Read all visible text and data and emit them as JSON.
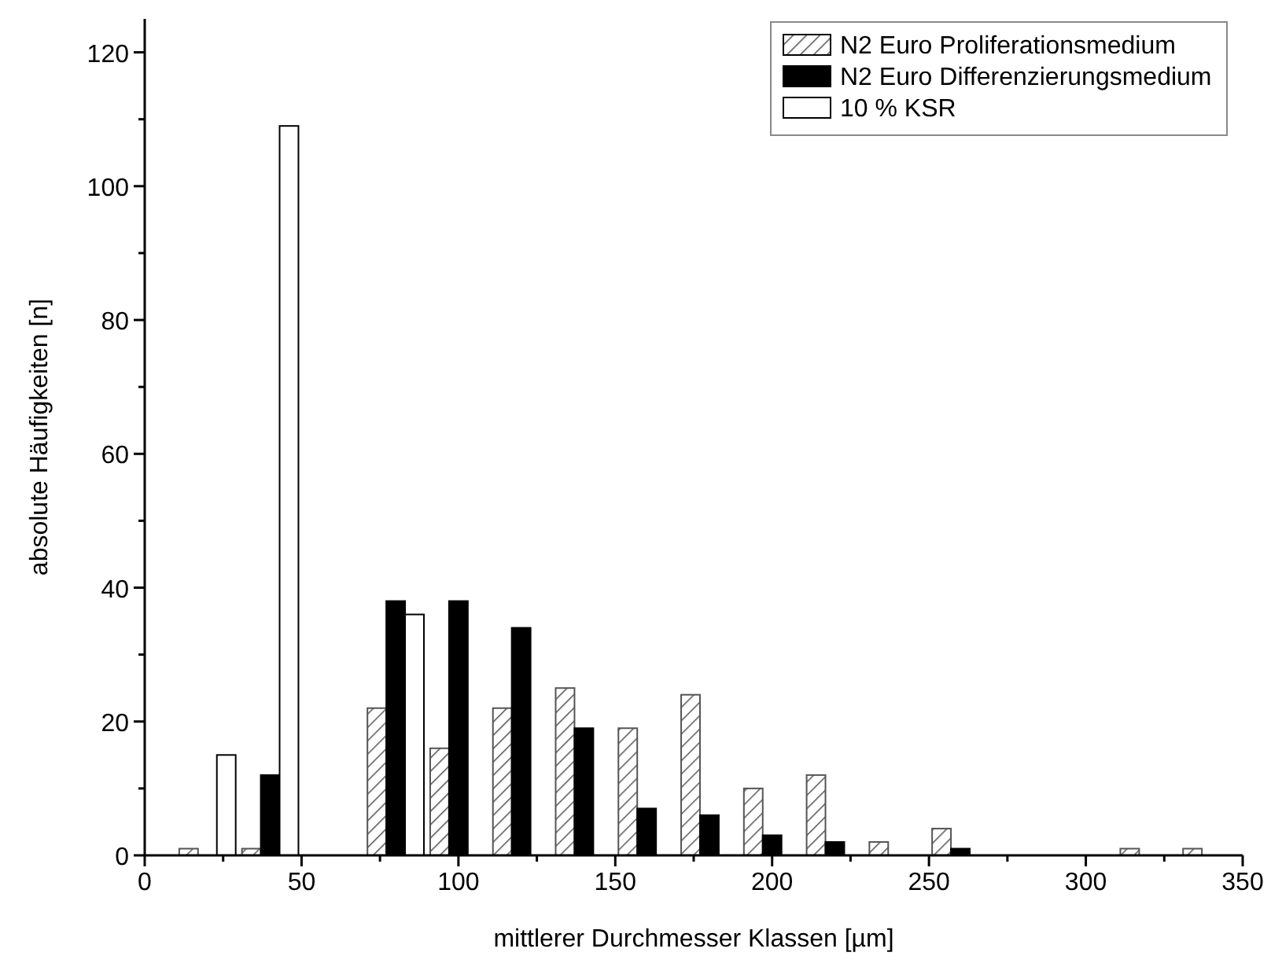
{
  "chart_data": {
    "type": "bar",
    "xlabel": "mittlerer Durchmesser Klassen [µm]",
    "ylabel": "absolute Häufigkeiten [n]",
    "x": [
      20,
      40,
      60,
      80,
      100,
      120,
      140,
      160,
      180,
      200,
      220,
      240,
      260,
      280,
      300,
      320,
      340
    ],
    "series": [
      {
        "name": "N2 Euro Proliferationsmedium",
        "color": "#555555",
        "values": [
          1,
          1,
          0,
          22,
          16,
          22,
          25,
          19,
          24,
          10,
          12,
          2,
          4,
          0,
          0,
          1,
          1
        ]
      },
      {
        "name": "N2 Euro Differenzierungsmedium",
        "color": "#000000",
        "values": [
          0,
          12,
          0,
          38,
          38,
          34,
          19,
          7,
          6,
          3,
          2,
          0,
          1,
          0,
          0,
          0,
          0
        ]
      },
      {
        "name": "10 % KSR",
        "color": "#ffffff",
        "values": [
          15,
          109,
          0,
          36,
          0,
          0,
          0,
          0,
          0,
          0,
          0,
          0,
          0,
          0,
          0,
          0,
          0
        ]
      }
    ],
    "xlim": [
      0,
      350
    ],
    "ylim": [
      0,
      125
    ],
    "xticks": [
      0,
      {
        "value": 25,
        "label": null
      },
      50,
      {
        "value": 75,
        "label": null
      },
      100,
      {
        "value": 125,
        "label": null
      },
      150,
      {
        "value": 175,
        "label": null
      },
      200,
      {
        "value": 225,
        "label": null
      },
      250,
      {
        "value": 275,
        "label": null
      },
      300,
      {
        "value": 325,
        "label": null
      },
      350
    ],
    "yticks": [
      0,
      {
        "value": 10,
        "label": null
      },
      20,
      {
        "value": 30,
        "label": null
      },
      40,
      {
        "value": 50,
        "label": null
      },
      60,
      {
        "value": 70,
        "label": null
      },
      80,
      {
        "value": 90,
        "label": null
      },
      100,
      {
        "value": 110,
        "label": null
      },
      120
    ],
    "legend": "top right",
    "grid": false
  }
}
